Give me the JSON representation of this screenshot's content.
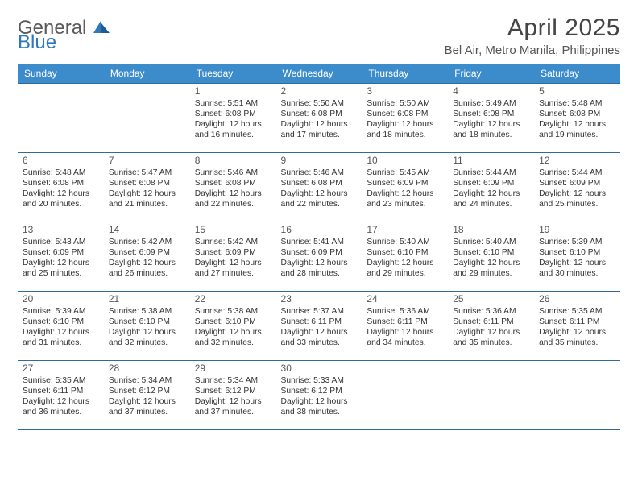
{
  "logo": {
    "text1": "General",
    "text2": "Blue"
  },
  "title": "April 2025",
  "location": "Bel Air, Metro Manila, Philippines",
  "colors": {
    "header_bg": "#3c8bcb",
    "header_text": "#ffffff",
    "rule": "#2f6a9a",
    "logo_gray": "#5a5a5a",
    "logo_blue": "#2f78bd",
    "body_text": "#333333",
    "title_text": "#444444",
    "location_text": "#555555",
    "daynum_text": "#555555"
  },
  "day_headers": [
    "Sunday",
    "Monday",
    "Tuesday",
    "Wednesday",
    "Thursday",
    "Friday",
    "Saturday"
  ],
  "weeks": [
    [
      null,
      null,
      {
        "n": "1",
        "sr": "5:51 AM",
        "ss": "6:08 PM",
        "dl": "12 hours and 16 minutes."
      },
      {
        "n": "2",
        "sr": "5:50 AM",
        "ss": "6:08 PM",
        "dl": "12 hours and 17 minutes."
      },
      {
        "n": "3",
        "sr": "5:50 AM",
        "ss": "6:08 PM",
        "dl": "12 hours and 18 minutes."
      },
      {
        "n": "4",
        "sr": "5:49 AM",
        "ss": "6:08 PM",
        "dl": "12 hours and 18 minutes."
      },
      {
        "n": "5",
        "sr": "5:48 AM",
        "ss": "6:08 PM",
        "dl": "12 hours and 19 minutes."
      }
    ],
    [
      {
        "n": "6",
        "sr": "5:48 AM",
        "ss": "6:08 PM",
        "dl": "12 hours and 20 minutes."
      },
      {
        "n": "7",
        "sr": "5:47 AM",
        "ss": "6:08 PM",
        "dl": "12 hours and 21 minutes."
      },
      {
        "n": "8",
        "sr": "5:46 AM",
        "ss": "6:08 PM",
        "dl": "12 hours and 22 minutes."
      },
      {
        "n": "9",
        "sr": "5:46 AM",
        "ss": "6:08 PM",
        "dl": "12 hours and 22 minutes."
      },
      {
        "n": "10",
        "sr": "5:45 AM",
        "ss": "6:09 PM",
        "dl": "12 hours and 23 minutes."
      },
      {
        "n": "11",
        "sr": "5:44 AM",
        "ss": "6:09 PM",
        "dl": "12 hours and 24 minutes."
      },
      {
        "n": "12",
        "sr": "5:44 AM",
        "ss": "6:09 PM",
        "dl": "12 hours and 25 minutes."
      }
    ],
    [
      {
        "n": "13",
        "sr": "5:43 AM",
        "ss": "6:09 PM",
        "dl": "12 hours and 25 minutes."
      },
      {
        "n": "14",
        "sr": "5:42 AM",
        "ss": "6:09 PM",
        "dl": "12 hours and 26 minutes."
      },
      {
        "n": "15",
        "sr": "5:42 AM",
        "ss": "6:09 PM",
        "dl": "12 hours and 27 minutes."
      },
      {
        "n": "16",
        "sr": "5:41 AM",
        "ss": "6:09 PM",
        "dl": "12 hours and 28 minutes."
      },
      {
        "n": "17",
        "sr": "5:40 AM",
        "ss": "6:10 PM",
        "dl": "12 hours and 29 minutes."
      },
      {
        "n": "18",
        "sr": "5:40 AM",
        "ss": "6:10 PM",
        "dl": "12 hours and 29 minutes."
      },
      {
        "n": "19",
        "sr": "5:39 AM",
        "ss": "6:10 PM",
        "dl": "12 hours and 30 minutes."
      }
    ],
    [
      {
        "n": "20",
        "sr": "5:39 AM",
        "ss": "6:10 PM",
        "dl": "12 hours and 31 minutes."
      },
      {
        "n": "21",
        "sr": "5:38 AM",
        "ss": "6:10 PM",
        "dl": "12 hours and 32 minutes."
      },
      {
        "n": "22",
        "sr": "5:38 AM",
        "ss": "6:10 PM",
        "dl": "12 hours and 32 minutes."
      },
      {
        "n": "23",
        "sr": "5:37 AM",
        "ss": "6:11 PM",
        "dl": "12 hours and 33 minutes."
      },
      {
        "n": "24",
        "sr": "5:36 AM",
        "ss": "6:11 PM",
        "dl": "12 hours and 34 minutes."
      },
      {
        "n": "25",
        "sr": "5:36 AM",
        "ss": "6:11 PM",
        "dl": "12 hours and 35 minutes."
      },
      {
        "n": "26",
        "sr": "5:35 AM",
        "ss": "6:11 PM",
        "dl": "12 hours and 35 minutes."
      }
    ],
    [
      {
        "n": "27",
        "sr": "5:35 AM",
        "ss": "6:11 PM",
        "dl": "12 hours and 36 minutes."
      },
      {
        "n": "28",
        "sr": "5:34 AM",
        "ss": "6:12 PM",
        "dl": "12 hours and 37 minutes."
      },
      {
        "n": "29",
        "sr": "5:34 AM",
        "ss": "6:12 PM",
        "dl": "12 hours and 37 minutes."
      },
      {
        "n": "30",
        "sr": "5:33 AM",
        "ss": "6:12 PM",
        "dl": "12 hours and 38 minutes."
      },
      null,
      null,
      null
    ]
  ],
  "labels": {
    "sunrise": "Sunrise: ",
    "sunset": "Sunset: ",
    "daylight": "Daylight: "
  }
}
